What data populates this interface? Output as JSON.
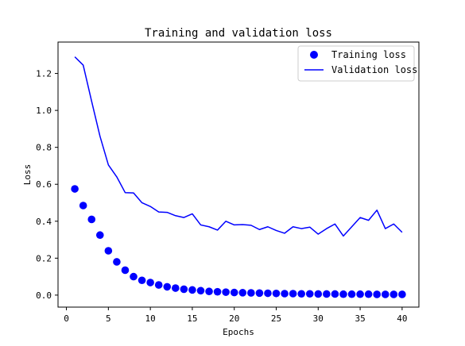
{
  "chart_data": {
    "type": "scatter+line",
    "title": "Training and validation loss",
    "xlabel": "Epochs",
    "ylabel": "Loss",
    "xlim": [
      -1.0,
      42.0
    ],
    "ylim": [
      -0.065,
      1.37
    ],
    "xticks": [
      0,
      5,
      10,
      15,
      20,
      25,
      30,
      35,
      40
    ],
    "yticks": [
      0.0,
      0.2,
      0.4,
      0.6,
      0.8,
      1.0,
      1.2
    ],
    "ytick_labels": [
      "0.0",
      "0.2",
      "0.4",
      "0.6",
      "0.8",
      "1.0",
      "1.2"
    ],
    "grid": false,
    "legend_position": "top-right",
    "x": [
      1,
      2,
      3,
      4,
      5,
      6,
      7,
      8,
      9,
      10,
      11,
      12,
      13,
      14,
      15,
      16,
      17,
      18,
      19,
      20,
      21,
      22,
      23,
      24,
      25,
      26,
      27,
      28,
      29,
      30,
      31,
      32,
      33,
      34,
      35,
      36,
      37,
      38,
      39,
      40
    ],
    "series": [
      {
        "name": "Training loss",
        "style": "markers",
        "color": "#0000ff",
        "values": [
          0.575,
          0.485,
          0.41,
          0.325,
          0.24,
          0.18,
          0.135,
          0.1,
          0.08,
          0.068,
          0.055,
          0.045,
          0.038,
          0.032,
          0.028,
          0.024,
          0.02,
          0.018,
          0.016,
          0.014,
          0.013,
          0.012,
          0.011,
          0.01,
          0.009,
          0.008,
          0.008,
          0.007,
          0.007,
          0.006,
          0.006,
          0.006,
          0.005,
          0.005,
          0.005,
          0.005,
          0.004,
          0.004,
          0.004,
          0.004
        ]
      },
      {
        "name": "Validation loss",
        "style": "line",
        "color": "#0000ff",
        "values": [
          1.29,
          1.245,
          1.05,
          0.86,
          0.705,
          0.64,
          0.555,
          0.553,
          0.5,
          0.48,
          0.45,
          0.448,
          0.43,
          0.42,
          0.44,
          0.38,
          0.37,
          0.352,
          0.4,
          0.38,
          0.382,
          0.378,
          0.355,
          0.37,
          0.35,
          0.335,
          0.37,
          0.36,
          0.368,
          0.33,
          0.36,
          0.385,
          0.32,
          0.37,
          0.42,
          0.405,
          0.46,
          0.36,
          0.385,
          0.34
        ]
      }
    ]
  }
}
